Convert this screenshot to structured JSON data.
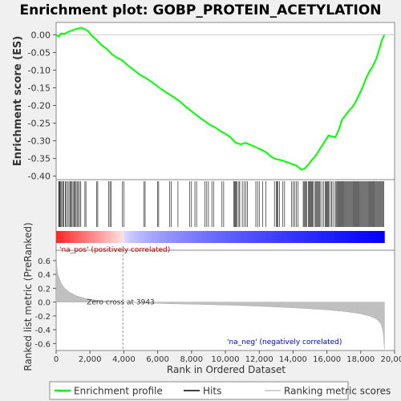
{
  "chart_data": {
    "type": "line",
    "title": "Enrichment plot: GOBP_PROTEIN_ACETYLATION",
    "ylabel_top": "Enrichment score (ES)",
    "ylabel_bottom": "Ranked list metric (PreRanked)",
    "xlabel": "Rank in Ordered Dataset",
    "top_ylim": [
      -0.41,
      0.035
    ],
    "top_yticks": [
      "0.00",
      "-0.05",
      "-0.10",
      "-0.15",
      "-0.20",
      "-0.25",
      "-0.30",
      "-0.35",
      "-0.40"
    ],
    "top_ytick_values": [
      0.0,
      -0.05,
      -0.1,
      -0.15,
      -0.2,
      -0.25,
      -0.3,
      -0.35,
      -0.4
    ],
    "bottom_ylim": [
      -0.7,
      0.75
    ],
    "bottom_yticks": [
      "0.6",
      "0.4",
      "0.2",
      "0.0",
      "-0.2",
      "-0.4",
      "-0.6"
    ],
    "bottom_ytick_values": [
      0.6,
      0.4,
      0.2,
      0.0,
      -0.2,
      -0.4,
      -0.6
    ],
    "xlim": [
      0,
      20000
    ],
    "xticks": [
      "0",
      "2,000",
      "4,000",
      "6,000",
      "8,000",
      "10,000",
      "12,000",
      "14,000",
      "16,000",
      "18,000",
      "20,000"
    ],
    "xtick_values": [
      0,
      2000,
      4000,
      6000,
      8000,
      10000,
      12000,
      14000,
      16000,
      18000,
      20000
    ],
    "n_genes": 19400,
    "zero_cross": 3943,
    "zero_cross_label": "Zero cross at 3943",
    "pos_label": "'na_pos' (positively correlated)",
    "neg_label": "'na_neg' (negatively correlated)",
    "series": [
      {
        "name": "Enrichment profile",
        "color": "#00ff00",
        "x": [
          0,
          150,
          300,
          500,
          700,
          900,
          1100,
          1300,
          1500,
          1700,
          1900,
          2100,
          2400,
          2700,
          3000,
          3300,
          3600,
          3900,
          4200,
          4600,
          5000,
          5300,
          5700,
          6100,
          6500,
          6900,
          7300,
          7700,
          8100,
          8500,
          8800,
          9100,
          9400,
          9700,
          10000,
          10300,
          10600,
          10900,
          11200,
          11500,
          11800,
          12100,
          12400,
          12700,
          13000,
          13300,
          13600,
          13900,
          14200,
          14500,
          14700,
          14900,
          15100,
          15300,
          15500,
          15700,
          15900,
          16100,
          16300,
          16500,
          16700,
          16900,
          17100,
          17300,
          17500,
          17700,
          17900,
          18100,
          18300,
          18500,
          18700,
          18900,
          19100,
          19250,
          19400
        ],
        "y": [
          0.0,
          -0.005,
          0.004,
          0.003,
          0.008,
          0.012,
          0.015,
          0.018,
          0.02,
          0.016,
          0.01,
          -0.002,
          -0.015,
          -0.03,
          -0.04,
          -0.055,
          -0.065,
          -0.072,
          -0.085,
          -0.1,
          -0.115,
          -0.122,
          -0.135,
          -0.15,
          -0.163,
          -0.175,
          -0.188,
          -0.205,
          -0.22,
          -0.235,
          -0.245,
          -0.255,
          -0.262,
          -0.272,
          -0.28,
          -0.29,
          -0.305,
          -0.31,
          -0.306,
          -0.312,
          -0.318,
          -0.325,
          -0.332,
          -0.345,
          -0.352,
          -0.355,
          -0.36,
          -0.365,
          -0.37,
          -0.382,
          -0.378,
          -0.368,
          -0.355,
          -0.345,
          -0.33,
          -0.315,
          -0.3,
          -0.285,
          -0.288,
          -0.29,
          -0.27,
          -0.24,
          -0.228,
          -0.215,
          -0.205,
          -0.19,
          -0.17,
          -0.15,
          -0.125,
          -0.105,
          -0.09,
          -0.07,
          -0.04,
          -0.015,
          0.0
        ]
      }
    ],
    "hits": [
      150,
      190,
      230,
      280,
      330,
      400,
      460,
      540,
      600,
      680,
      760,
      820,
      880,
      940,
      1000,
      1060,
      1120,
      1180,
      1240,
      1300,
      1380,
      1460,
      1700,
      1760,
      2400,
      2460,
      3100,
      3180,
      3250,
      3900,
      4000,
      5200,
      5260,
      6000,
      6060,
      6700,
      6800,
      7200,
      7900,
      8000,
      8200,
      8300,
      8800,
      8900,
      9000,
      9200,
      9300,
      9800,
      9900,
      10500,
      10550,
      10600,
      10650,
      10700,
      10800,
      10850,
      11000,
      11100,
      11200,
      11300,
      11800,
      11900,
      12000,
      12200,
      12400,
      12900,
      13000,
      13050,
      13100,
      13200,
      13400,
      13500,
      13900,
      14000,
      14100,
      14200,
      14300,
      14600,
      14650,
      14700,
      14750,
      14800,
      14900,
      14950,
      15000,
      15050,
      15100,
      15150,
      15200,
      15300,
      15350,
      15400,
      15450,
      15500,
      15550,
      15600,
      15700,
      15800,
      15900,
      15950,
      16000,
      16050,
      16100,
      16150,
      16250,
      16300,
      16400,
      16500,
      16550,
      16600,
      16650,
      16700,
      16750,
      16800,
      16850,
      16900,
      16950,
      17000,
      17050,
      17100,
      17150,
      17200,
      17250,
      17300,
      17350,
      17400,
      17450,
      17500,
      17550,
      17600,
      17650,
      17700,
      17750,
      17800,
      17850,
      17900,
      17950,
      18000,
      18050,
      18100,
      18150,
      18200,
      18250,
      18300,
      18350,
      18400,
      18450,
      18500,
      18550,
      18600,
      18650,
      18700,
      18750,
      18800,
      18850,
      18900,
      18950,
      19000,
      19050,
      19100,
      19150,
      19200,
      19250,
      19300,
      19350
    ],
    "ranked_metric": {
      "x": [
        0,
        50,
        100,
        200,
        300,
        500,
        800,
        1200,
        1600,
        2000,
        2500,
        3000,
        3500,
        3943,
        5000,
        6000,
        7000,
        8000,
        9000,
        10000,
        11000,
        12000,
        13000,
        14000,
        15000,
        16000,
        17000,
        17500,
        18000,
        18500,
        18800,
        19000,
        19100,
        19200,
        19300,
        19350,
        19400
      ],
      "y": [
        0.7,
        0.48,
        0.4,
        0.33,
        0.27,
        0.2,
        0.14,
        0.09,
        0.06,
        0.04,
        0.025,
        0.015,
        0.007,
        0.0,
        -0.01,
        -0.018,
        -0.025,
        -0.03,
        -0.036,
        -0.043,
        -0.05,
        -0.06,
        -0.07,
        -0.082,
        -0.096,
        -0.112,
        -0.135,
        -0.15,
        -0.17,
        -0.2,
        -0.23,
        -0.26,
        -0.29,
        -0.32,
        -0.4,
        -0.5,
        -0.68
      ]
    },
    "legend": [
      {
        "label": "Enrichment profile",
        "color": "#00ff00"
      },
      {
        "label": "Hits",
        "color": "#000000"
      },
      {
        "label": "Ranking metric scores",
        "color": "#c0c0c0"
      }
    ],
    "grid": false
  }
}
